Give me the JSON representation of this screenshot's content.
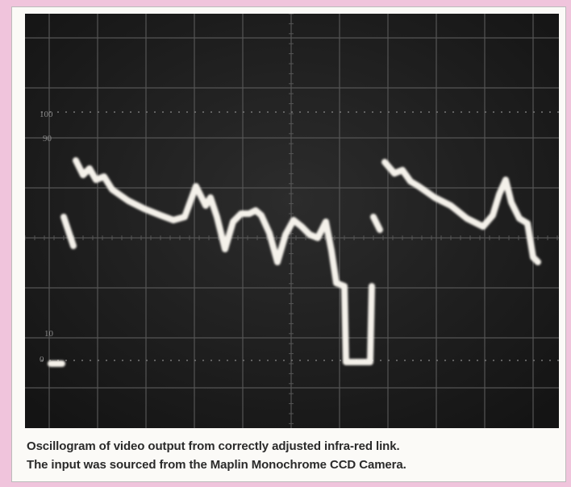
{
  "graticule_labels": [
    "100",
    "90",
    "10",
    "0"
  ],
  "caption": {
    "line1": "Oscillogram of video output from correctly adjusted infra-red link.",
    "line2": "The input was sourced from the Maplin Monochrome CCD Camera."
  }
}
